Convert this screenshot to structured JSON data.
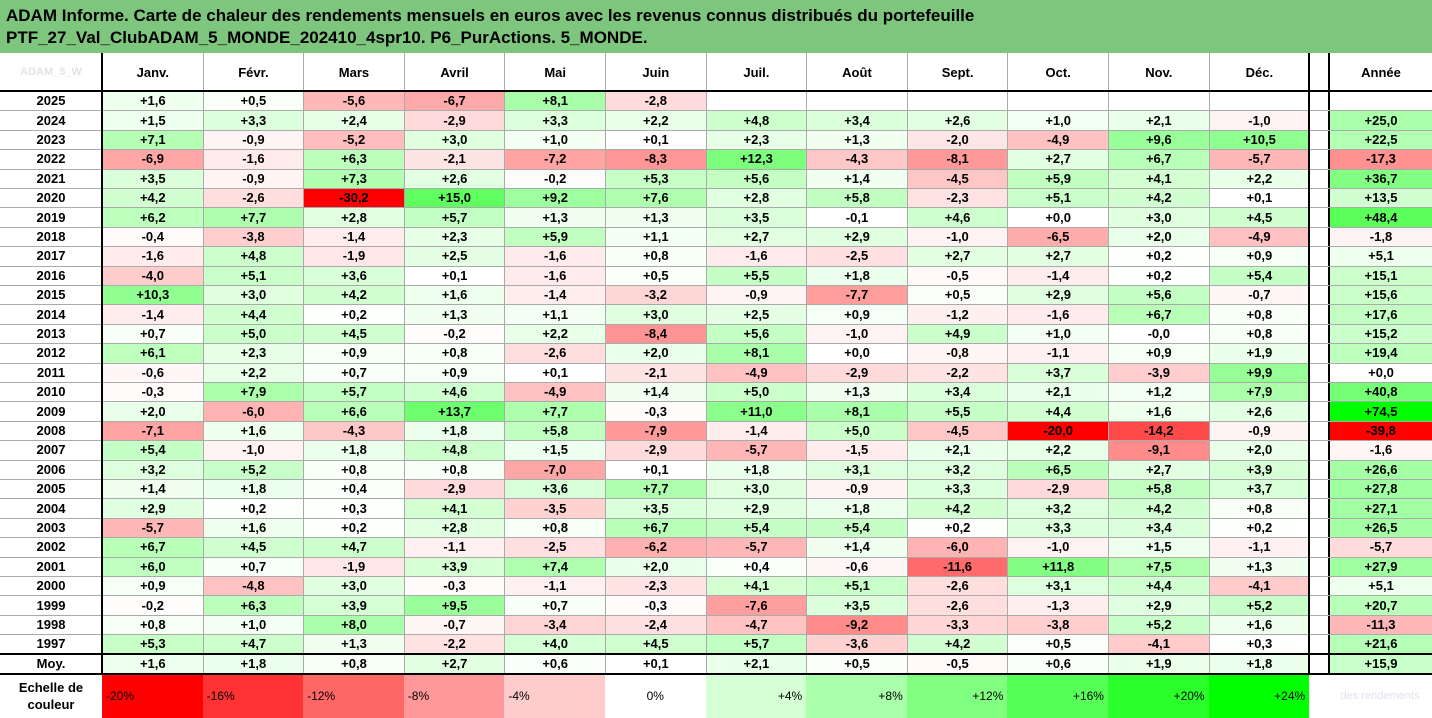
{
  "title": {
    "line1": "ADAM Informe. Carte de chaleur des rendements mensuels en euros avec les revenus connus distribués du portefeuille",
    "line2": "PTF_27_Val_ClubADAM_5_MONDE_202410_4spr10. P6_PurActions. 5_MONDE."
  },
  "corner_label": "ADAM_5_W",
  "watermark": "des rendements",
  "chart_data": {
    "type": "heatmap",
    "columns": [
      "Janv.",
      "Févr.",
      "Mars",
      "Avril",
      "Mai",
      "Juin",
      "Juil.",
      "Août",
      "Sept.",
      "Oct.",
      "Nov.",
      "Déc."
    ],
    "annual_label": "Année",
    "rows": [
      {
        "year": "2025",
        "values": [
          "+1,6",
          "+0,5",
          "-5,6",
          "-6,7",
          "+8,1",
          "-2,8",
          "",
          "",
          "",
          "",
          "",
          ""
        ],
        "annual": ""
      },
      {
        "year": "2024",
        "values": [
          "+1,5",
          "+3,3",
          "+2,4",
          "-2,9",
          "+3,3",
          "+2,2",
          "+4,8",
          "+3,4",
          "+2,6",
          "+1,0",
          "+2,1",
          "-1,0"
        ],
        "annual": "+25,0"
      },
      {
        "year": "2023",
        "values": [
          "+7,1",
          "-0,9",
          "-5,2",
          "+3,0",
          "+1,0",
          "+0,1",
          "+2,3",
          "+1,3",
          "-2,0",
          "-4,9",
          "+9,6",
          "+10,5"
        ],
        "annual": "+22,5"
      },
      {
        "year": "2022",
        "values": [
          "-6,9",
          "-1,6",
          "+6,3",
          "-2,1",
          "-7,2",
          "-8,3",
          "+12,3",
          "-4,3",
          "-8,1",
          "+2,7",
          "+6,7",
          "-5,7"
        ],
        "annual": "-17,3"
      },
      {
        "year": "2021",
        "values": [
          "+3,5",
          "-0,9",
          "+7,3",
          "+2,6",
          "-0,2",
          "+5,3",
          "+5,6",
          "+1,4",
          "-4,5",
          "+5,9",
          "+4,1",
          "+2,2"
        ],
        "annual": "+36,7"
      },
      {
        "year": "2020",
        "values": [
          "+4,2",
          "-2,6",
          "-30,2",
          "+15,0",
          "+9,2",
          "+7,6",
          "+2,8",
          "+5,8",
          "-2,3",
          "+5,1",
          "+4,2",
          "+0,1"
        ],
        "annual": "+13,5"
      },
      {
        "year": "2019",
        "values": [
          "+6,2",
          "+7,7",
          "+2,8",
          "+5,7",
          "+1,3",
          "+1,3",
          "+3,5",
          "-0,1",
          "+4,6",
          "+0,0",
          "+3,0",
          "+4,5"
        ],
        "annual": "+48,4"
      },
      {
        "year": "2018",
        "values": [
          "-0,4",
          "-3,8",
          "-1,4",
          "+2,3",
          "+5,9",
          "+1,1",
          "+2,7",
          "+2,9",
          "-1,0",
          "-6,5",
          "+2,0",
          "-4,9"
        ],
        "annual": "-1,8"
      },
      {
        "year": "2017",
        "values": [
          "-1,6",
          "+4,8",
          "-1,9",
          "+2,5",
          "-1,6",
          "+0,8",
          "-1,6",
          "-2,5",
          "+2,7",
          "+2,7",
          "+0,2",
          "+0,9"
        ],
        "annual": "+5,1"
      },
      {
        "year": "2016",
        "values": [
          "-4,0",
          "+5,1",
          "+3,6",
          "+0,1",
          "-1,6",
          "+0,5",
          "+5,5",
          "+1,8",
          "-0,5",
          "-1,4",
          "+0,2",
          "+5,4"
        ],
        "annual": "+15,1"
      },
      {
        "year": "2015",
        "values": [
          "+10,3",
          "+3,0",
          "+4,2",
          "+1,6",
          "-1,4",
          "-3,2",
          "-0,9",
          "-7,7",
          "+0,5",
          "+2,9",
          "+5,6",
          "-0,7"
        ],
        "annual": "+15,6"
      },
      {
        "year": "2014",
        "values": [
          "-1,4",
          "+4,4",
          "+0,2",
          "+1,3",
          "+1,1",
          "+3,0",
          "+2,5",
          "+0,9",
          "-1,2",
          "-1,6",
          "+6,7",
          "+0,8"
        ],
        "annual": "+17,6"
      },
      {
        "year": "2013",
        "values": [
          "+0,7",
          "+5,0",
          "+4,5",
          "-0,2",
          "+2,2",
          "-8,4",
          "+5,6",
          "-1,0",
          "+4,9",
          "+1,0",
          "-0,0",
          "+0,8"
        ],
        "annual": "+15,2"
      },
      {
        "year": "2012",
        "values": [
          "+6,1",
          "+2,3",
          "+0,9",
          "+0,8",
          "-2,6",
          "+2,0",
          "+8,1",
          "+0,0",
          "-0,8",
          "-1,1",
          "+0,9",
          "+1,9"
        ],
        "annual": "+19,4"
      },
      {
        "year": "2011",
        "values": [
          "-0,6",
          "+2,2",
          "+0,7",
          "+0,9",
          "+0,1",
          "-2,1",
          "-4,9",
          "-2,9",
          "-2,2",
          "+3,7",
          "-3,9",
          "+9,9"
        ],
        "annual": "+0,0"
      },
      {
        "year": "2010",
        "values": [
          "-0,3",
          "+7,9",
          "+5,7",
          "+4,6",
          "-4,9",
          "+1,4",
          "+5,0",
          "+1,3",
          "+3,4",
          "+2,1",
          "+1,2",
          "+7,9"
        ],
        "annual": "+40,8"
      },
      {
        "year": "2009",
        "values": [
          "+2,0",
          "-6,0",
          "+6,6",
          "+13,7",
          "+7,7",
          "-0,3",
          "+11,0",
          "+8,1",
          "+5,5",
          "+4,4",
          "+1,6",
          "+2,6"
        ],
        "annual": "+74,5"
      },
      {
        "year": "2008",
        "values": [
          "-7,1",
          "+1,6",
          "-4,3",
          "+1,8",
          "+5,8",
          "-7,9",
          "-1,4",
          "+5,0",
          "-4,5",
          "-20,0",
          "-14,2",
          "-0,9"
        ],
        "annual": "-39,8"
      },
      {
        "year": "2007",
        "values": [
          "+5,4",
          "-1,0",
          "+1,8",
          "+4,8",
          "+1,5",
          "-2,9",
          "-5,7",
          "-1,5",
          "+2,1",
          "+2,2",
          "-9,1",
          "+2,0"
        ],
        "annual": "-1,6"
      },
      {
        "year": "2006",
        "values": [
          "+3,2",
          "+5,2",
          "+0,8",
          "+0,8",
          "-7,0",
          "+0,1",
          "+1,8",
          "+3,1",
          "+3,2",
          "+6,5",
          "+2,7",
          "+3,9"
        ],
        "annual": "+26,6"
      },
      {
        "year": "2005",
        "values": [
          "+1,4",
          "+1,8",
          "+0,4",
          "-2,9",
          "+3,6",
          "+7,7",
          "+3,0",
          "-0,9",
          "+3,3",
          "-2,9",
          "+5,8",
          "+3,7"
        ],
        "annual": "+27,8"
      },
      {
        "year": "2004",
        "values": [
          "+2,9",
          "+0,2",
          "+0,3",
          "+4,1",
          "-3,5",
          "+3,5",
          "+2,9",
          "+1,8",
          "+4,2",
          "+3,2",
          "+4,2",
          "+0,8"
        ],
        "annual": "+27,1"
      },
      {
        "year": "2003",
        "values": [
          "-5,7",
          "+1,6",
          "+0,2",
          "+2,8",
          "+0,8",
          "+6,7",
          "+5,4",
          "+5,4",
          "+0,2",
          "+3,3",
          "+3,4",
          "+0,2"
        ],
        "annual": "+26,5"
      },
      {
        "year": "2002",
        "values": [
          "+6,7",
          "+4,5",
          "+4,7",
          "-1,1",
          "-2,5",
          "-6,2",
          "-5,7",
          "+1,4",
          "-6,0",
          "-1,0",
          "+1,5",
          "-1,1"
        ],
        "annual": "-5,7"
      },
      {
        "year": "2001",
        "values": [
          "+6,0",
          "+0,7",
          "-1,9",
          "+3,9",
          "+7,4",
          "+2,0",
          "+0,4",
          "-0,6",
          "-11,6",
          "+11,8",
          "+7,5",
          "+1,3"
        ],
        "annual": "+27,9"
      },
      {
        "year": "2000",
        "values": [
          "+0,9",
          "-4,8",
          "+3,0",
          "-0,3",
          "-1,1",
          "-2,3",
          "+4,1",
          "+5,1",
          "-2,6",
          "+3,1",
          "+4,4",
          "-4,1"
        ],
        "annual": "+5,1"
      },
      {
        "year": "1999",
        "values": [
          "-0,2",
          "+6,3",
          "+3,9",
          "+9,5",
          "+0,7",
          "-0,3",
          "-7,6",
          "+3,5",
          "-2,6",
          "-1,3",
          "+2,9",
          "+5,2"
        ],
        "annual": "+20,7"
      },
      {
        "year": "1998",
        "values": [
          "+0,8",
          "+1,0",
          "+8,0",
          "-0,7",
          "-3,4",
          "-2,4",
          "-4,7",
          "-9,2",
          "-3,3",
          "-3,8",
          "+5,2",
          "+1,6"
        ],
        "annual": "-11,3"
      },
      {
        "year": "1997",
        "values": [
          "+5,3",
          "+4,7",
          "+1,3",
          "-2,2",
          "+4,0",
          "+4,5",
          "+5,7",
          "-3,6",
          "+4,2",
          "+0,5",
          "-4,1",
          "+0,3"
        ],
        "annual": "+21,6"
      }
    ],
    "average": {
      "label": "Moy.",
      "values": [
        "+1,6",
        "+1,8",
        "+0,8",
        "+2,7",
        "+0,6",
        "+0,1",
        "+2,1",
        "+0,5",
        "-0,5",
        "+0,6",
        "+1,9",
        "+1,8"
      ],
      "annual": "+15,9"
    },
    "color_scale": {
      "label": "Echelle de couleur",
      "steps": [
        "-20%",
        "-16%",
        "-12%",
        "-8%",
        "-4%",
        "0%",
        "+4%",
        "+8%",
        "+12%",
        "+16%",
        "+20%",
        "+24%"
      ],
      "step_values": [
        -20,
        -16,
        -12,
        -8,
        -4,
        0,
        4,
        8,
        12,
        16,
        20,
        24
      ],
      "monthly_range": [
        -20,
        24
      ],
      "annual_range": [
        -40,
        75
      ],
      "negative_color": "#ff0000",
      "neutral_color": "#ffffff",
      "positive_color": "#00ff00"
    }
  }
}
